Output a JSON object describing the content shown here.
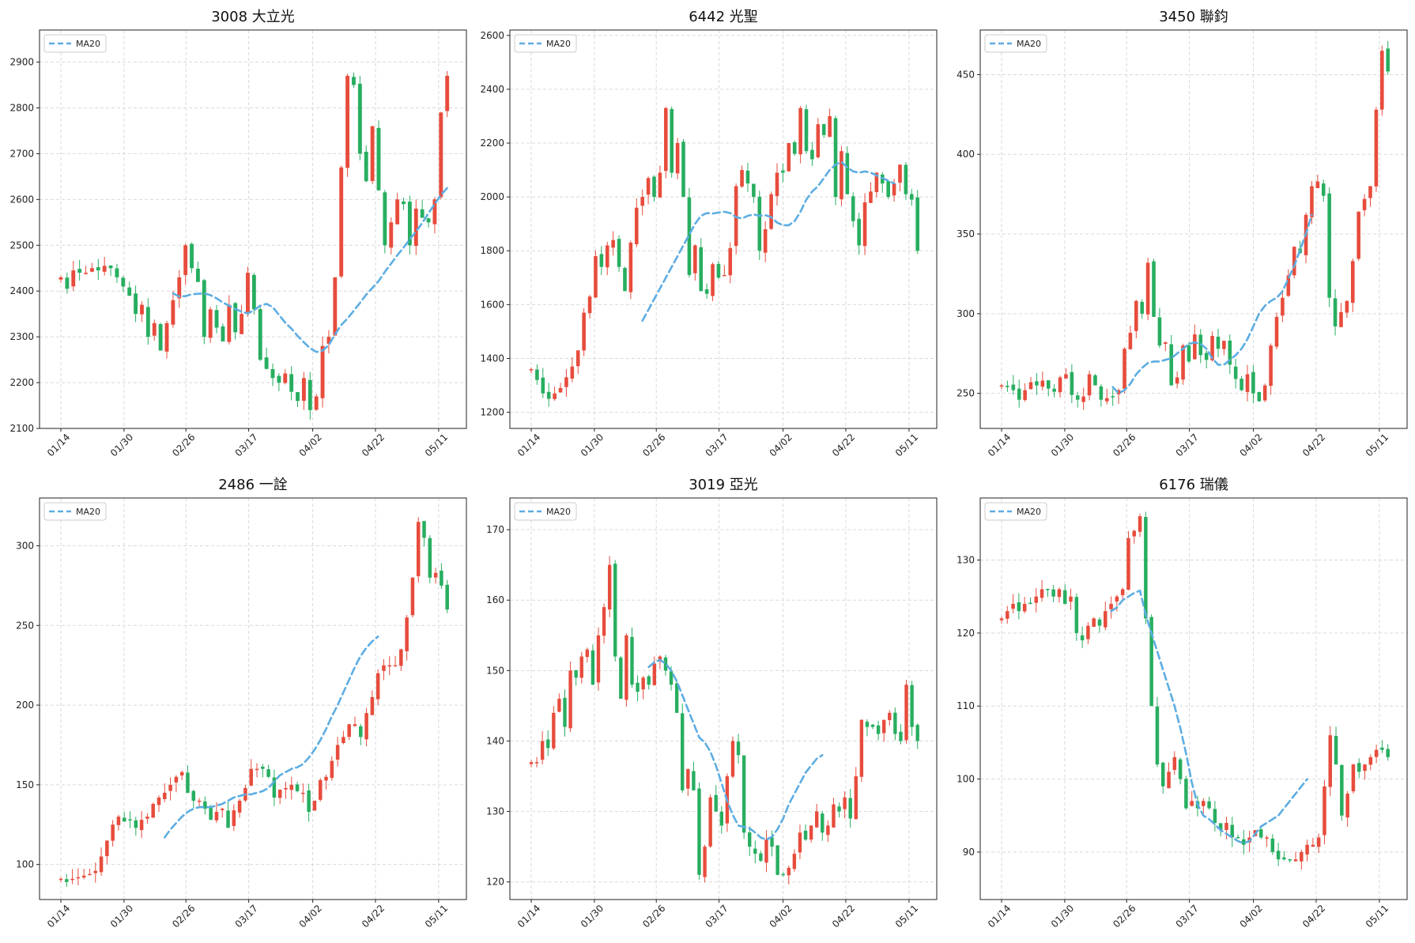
{
  "colors": {
    "up": "#e74c3c",
    "down": "#27ae60",
    "ma": "#5dade2",
    "grid": "#d9d9d9"
  },
  "x_ticks": [
    "01/14",
    "01/30",
    "02/26",
    "03/17",
    "04/02",
    "04/22",
    "05/11"
  ],
  "legend_label": "MA20",
  "chart_data": [
    {
      "type": "candlestick",
      "title": "3008 大立光",
      "ylim": [
        2100,
        2970
      ],
      "yticks": [
        2100,
        2200,
        2300,
        2400,
        2500,
        2600,
        2700,
        2800,
        2900
      ],
      "x_ticks": [
        "01/14",
        "01/30",
        "02/26",
        "03/17",
        "04/02",
        "04/22",
        "05/11"
      ],
      "grid": true,
      "legend": "top-left",
      "closes": [
        2430,
        2405,
        2445,
        2440,
        2440,
        2450,
        2445,
        2455,
        2450,
        2430,
        2410,
        2390,
        2350,
        2370,
        2300,
        2330,
        2270,
        2330,
        2380,
        2430,
        2500,
        2450,
        2420,
        2300,
        2360,
        2320,
        2290,
        2370,
        2310,
        2350,
        2440,
        2360,
        2250,
        2230,
        2210,
        2200,
        2220,
        2180,
        2160,
        2210,
        2140,
        2170,
        2280,
        2300,
        2430,
        2670,
        2870,
        2850,
        2700,
        2640,
        2760,
        2620,
        2500,
        2550,
        2600,
        2590,
        2500,
        2580,
        2560,
        2550,
        2600,
        2790,
        2870
      ],
      "ma20": [
        2395,
        2388,
        2389,
        2393,
        2394,
        2395,
        2391,
        2384,
        2375,
        2368,
        2361,
        2355,
        2351,
        2358,
        2368,
        2372,
        2365,
        2348,
        2331,
        2318,
        2302,
        2288,
        2275,
        2267,
        2270,
        2282,
        2305,
        2326,
        2340,
        2357,
        2374,
        2392,
        2407,
        2422,
        2442,
        2460,
        2478,
        2495,
        2513,
        2530,
        2549,
        2570,
        2590,
        2610,
        2625
      ],
      "ma20_start": 18
    },
    {
      "type": "candlestick",
      "title": "6442 光聖",
      "ylim": [
        1140,
        2620
      ],
      "yticks": [
        1200,
        1400,
        1600,
        1800,
        2000,
        2200,
        2400,
        2600
      ],
      "x_ticks": [
        "01/14",
        "01/30",
        "02/26",
        "03/17",
        "04/02",
        "04/22",
        "05/11"
      ],
      "grid": true,
      "legend": "top-left",
      "closes": [
        1360,
        1320,
        1270,
        1250,
        1270,
        1290,
        1330,
        1370,
        1430,
        1570,
        1630,
        1780,
        1740,
        1820,
        1840,
        1740,
        1650,
        1830,
        1960,
        2000,
        2070,
        2000,
        2090,
        2330,
        2090,
        2200,
        2000,
        1710,
        1820,
        1650,
        1640,
        1750,
        1700,
        1710,
        1810,
        2040,
        2100,
        2050,
        2000,
        1800,
        1880,
        2010,
        2090,
        2090,
        2200,
        2160,
        2330,
        2170,
        2140,
        2270,
        2230,
        2300,
        2000,
        2170,
        2010,
        1910,
        1820,
        1980,
        2020,
        2090,
        2050,
        2000,
        2050,
        2120,
        2010,
        1990,
        1800
      ],
      "ma20": [
        1540,
        1580,
        1620,
        1660,
        1700,
        1740,
        1780,
        1820,
        1860,
        1900,
        1930,
        1940,
        1938,
        1942,
        1945,
        1940,
        1925,
        1920,
        1930,
        1935,
        1930,
        1932,
        1925,
        1905,
        1895,
        1895,
        1910,
        1945,
        1990,
        2020,
        2040,
        2070,
        2100,
        2120,
        2130,
        2110,
        2095,
        2090,
        2095,
        2090,
        2080,
        2070,
        2060,
        2050
      ],
      "ma20_start": 19
    },
    {
      "type": "candlestick",
      "title": "3450 聯鈞",
      "ylim": [
        228,
        478
      ],
      "yticks": [
        250,
        300,
        350,
        400,
        450
      ],
      "x_ticks": [
        "01/14",
        "01/30",
        "02/26",
        "03/17",
        "04/02",
        "04/22",
        "05/11"
      ],
      "grid": true,
      "legend": "top-left",
      "closes": [
        255,
        254,
        252,
        246,
        252,
        257,
        255,
        258,
        253,
        251,
        260,
        262,
        249,
        246,
        248,
        262,
        255,
        246,
        247,
        248,
        252,
        278,
        288,
        308,
        300,
        332,
        298,
        280,
        282,
        255,
        260,
        280,
        270,
        287,
        274,
        271,
        286,
        278,
        283,
        268,
        259,
        252,
        262,
        250,
        245,
        255,
        280,
        298,
        310,
        324,
        342,
        338,
        362,
        380,
        383,
        374,
        310,
        292,
        301,
        308,
        333,
        364,
        372,
        380,
        428,
        465,
        452
      ],
      "ma20": [
        254,
        250,
        252,
        256,
        262,
        266,
        269,
        270,
        270,
        271,
        272,
        275,
        278,
        281,
        282,
        281,
        278,
        272,
        268,
        268,
        271,
        274,
        278,
        284,
        292,
        300,
        305,
        308,
        310,
        314,
        322,
        330,
        340,
        350,
        362
      ],
      "ma20_start": 19
    },
    {
      "type": "candlestick",
      "title": "2486 一詮",
      "ylim": [
        78,
        330
      ],
      "yticks": [
        100,
        150,
        200,
        250,
        300
      ],
      "x_ticks": [
        "01/14",
        "01/30",
        "02/26",
        "03/17",
        "04/02",
        "04/22",
        "05/11"
      ],
      "grid": true,
      "legend": "top-left",
      "closes": [
        91,
        89,
        91,
        92,
        93,
        94,
        96,
        105,
        115,
        125,
        130,
        127,
        128,
        123,
        128,
        130,
        138,
        142,
        145,
        150,
        155,
        158,
        145,
        140,
        140,
        135,
        128,
        133,
        135,
        123,
        134,
        140,
        148,
        160,
        160,
        160,
        155,
        142,
        147,
        148,
        150,
        146,
        145,
        133,
        140,
        153,
        155,
        165,
        175,
        180,
        188,
        188,
        180,
        195,
        205,
        220,
        225,
        225,
        225,
        235,
        255,
        280,
        315,
        305,
        280,
        283,
        275,
        260
      ],
      "ma20": [
        117,
        122,
        126,
        130,
        133,
        135,
        136,
        136,
        136,
        137,
        138,
        140,
        142,
        143,
        144,
        144,
        145,
        146,
        148,
        152,
        156,
        158,
        160,
        161,
        163,
        167,
        172,
        178,
        185,
        193,
        200,
        208,
        216,
        224,
        231,
        236,
        240,
        243
      ],
      "ma20_start": 18
    },
    {
      "type": "candlestick",
      "title": "3019 亞光",
      "ylim": [
        117.5,
        174.5
      ],
      "yticks": [
        120,
        130,
        140,
        150,
        160,
        170
      ],
      "x_ticks": [
        "01/14",
        "01/30",
        "02/26",
        "03/17",
        "04/02",
        "04/22",
        "05/11"
      ],
      "grid": true,
      "legend": "top-left",
      "closes": [
        137,
        137,
        140,
        139,
        144,
        146,
        142,
        150,
        149,
        152,
        153,
        148,
        155,
        159,
        165,
        152,
        146,
        155,
        148,
        147,
        149,
        148,
        151,
        152,
        150,
        148,
        144,
        133,
        136,
        133,
        121,
        125,
        132,
        130,
        128,
        135,
        140,
        138,
        127,
        125,
        124,
        123,
        126,
        125,
        121,
        121,
        122,
        124,
        127,
        126,
        128,
        130,
        127,
        128,
        131,
        130,
        132,
        129,
        135,
        143,
        142,
        142,
        141,
        143,
        144,
        141,
        140,
        148,
        142,
        140
      ],
      "ma20": [
        150.5,
        151.2,
        151.5,
        151.0,
        150.0,
        148.5,
        146.5,
        144.5,
        142.5,
        140.5,
        139.8,
        138.5,
        136.5,
        134.0,
        131.5,
        129.5,
        128.0,
        127.8,
        127.6,
        127.0,
        126.3,
        126.0,
        126.4,
        127.5,
        129.0,
        131.0,
        132.5,
        134.0,
        135.5,
        136.5,
        137.5,
        138.0
      ],
      "ma20_start": 21
    },
    {
      "type": "candlestick",
      "title": "6176 瑞儀",
      "ylim": [
        83.5,
        138.5
      ],
      "yticks": [
        90,
        100,
        110,
        120,
        130
      ],
      "x_ticks": [
        "01/14",
        "01/30",
        "02/26",
        "03/17",
        "04/02",
        "04/22",
        "05/11"
      ],
      "grid": true,
      "legend": "top-left",
      "closes": [
        122,
        123,
        124,
        123,
        124,
        124,
        125,
        126,
        126,
        125,
        126,
        124,
        125,
        120,
        119,
        121,
        122,
        121,
        123,
        124,
        125,
        126,
        133,
        134,
        136,
        122,
        110,
        102,
        99,
        101,
        103,
        100,
        96,
        97,
        96,
        97,
        96,
        94,
        93,
        94,
        92,
        92,
        91,
        92,
        93,
        92,
        92,
        90,
        89,
        89,
        89,
        89,
        90,
        91,
        91,
        92,
        99,
        106,
        102,
        95,
        98,
        102,
        101,
        102,
        103,
        104,
        104,
        103
      ],
      "ma20": [
        123.0,
        123.5,
        124.5,
        125.0,
        125.5,
        125.8,
        122.5,
        120.0,
        117.5,
        115.0,
        112.5,
        110.0,
        107.0,
        103.5,
        99.5,
        96.5,
        95.0,
        94.5,
        93.8,
        93.0,
        92.5,
        92.0,
        91.5,
        91.2,
        91.5,
        92.5,
        93.5,
        94.0,
        94.5,
        95.0,
        96.0,
        97.0,
        98.0,
        99.0,
        100.0
      ],
      "ma20_start": 19
    }
  ]
}
